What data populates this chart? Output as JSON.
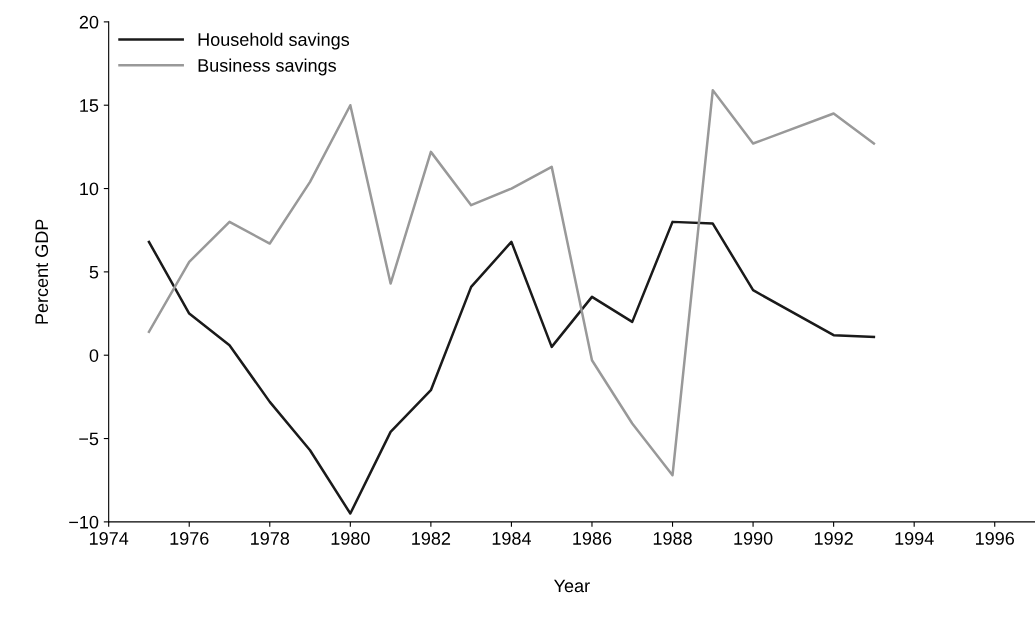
{
  "chart_data": {
    "type": "line",
    "xlabel": "Year",
    "ylabel": "Percent GDP",
    "series": [
      {
        "name": "Household savings",
        "color": "#1a1a1a",
        "x": [
          1975,
          1976,
          1977,
          1978,
          1979,
          1980,
          1981,
          1982,
          1983,
          1984,
          1985,
          1986,
          1987,
          1988,
          1989,
          1990,
          1992,
          1993
        ],
        "values": [
          6.8,
          2.5,
          0.6,
          -2.8,
          -5.7,
          -9.5,
          -4.6,
          -2.1,
          4.1,
          6.8,
          0.5,
          3.5,
          2.0,
          8.0,
          7.9,
          3.9,
          1.2,
          1.1
        ]
      },
      {
        "name": "Business savings",
        "color": "#999999",
        "x": [
          1975,
          1976,
          1977,
          1978,
          1979,
          1980,
          1981,
          1982,
          1983,
          1984,
          1985,
          1986,
          1987,
          1988,
          1989,
          1990,
          1992,
          1993
        ],
        "values": [
          1.4,
          5.6,
          8.0,
          6.7,
          10.4,
          15.0,
          4.3,
          12.2,
          9.0,
          10.0,
          11.3,
          -0.3,
          -4.1,
          -7.2,
          15.9,
          12.7,
          14.5,
          12.7
        ]
      }
    ],
    "xlim": [
      1974,
      1997
    ],
    "xticks": [
      1974,
      1976,
      1978,
      1980,
      1982,
      1984,
      1986,
      1988,
      1990,
      1992,
      1994,
      1996
    ],
    "ylim": [
      -10,
      20
    ],
    "yticks": [
      {
        "value": -10,
        "label": "−10"
      },
      {
        "value": -5,
        "label": "−5"
      },
      0,
      5,
      10,
      15,
      20
    ],
    "grid": false,
    "legend": "top left",
    "marker": "none",
    "line_style": "solid"
  }
}
